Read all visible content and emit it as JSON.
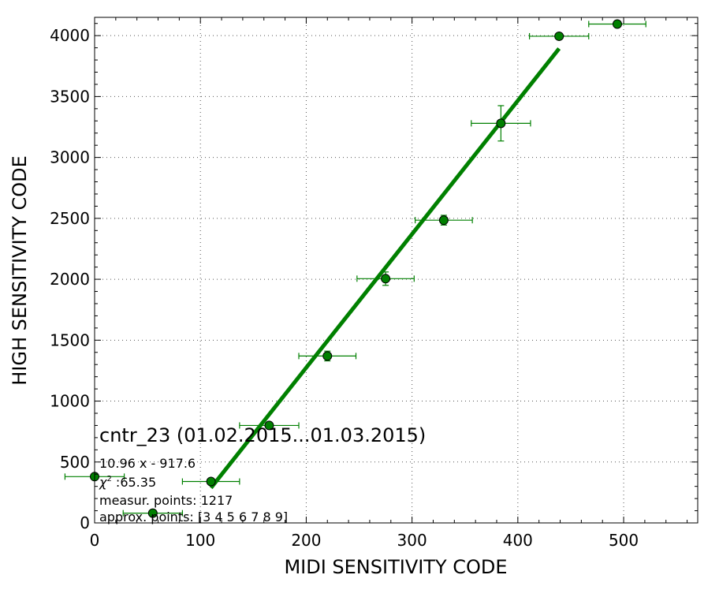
{
  "chart_data": {
    "type": "scatter",
    "xlabel": "MIDI SENSITIVITY CODE",
    "ylabel": "HIGH SENSITIVITY CODE",
    "xlim": [
      0,
      570
    ],
    "ylim": [
      0,
      4150
    ],
    "xticks": [
      0,
      100,
      200,
      300,
      400,
      500
    ],
    "yticks": [
      0,
      500,
      1000,
      1500,
      2000,
      2500,
      3000,
      3500,
      4000
    ],
    "grid": true,
    "color": "#008000",
    "points": [
      {
        "x": 0,
        "y": 380,
        "xerr": 28,
        "yerr": 0
      },
      {
        "x": 55,
        "y": 80,
        "xerr": 28,
        "yerr": 0
      },
      {
        "x": 110,
        "y": 340,
        "xerr": 27,
        "yerr": 0
      },
      {
        "x": 165,
        "y": 800,
        "xerr": 28,
        "yerr": 0
      },
      {
        "x": 220,
        "y": 1370,
        "xerr": 27,
        "yerr": 40
      },
      {
        "x": 275,
        "y": 2005,
        "xerr": 27,
        "yerr": 55
      },
      {
        "x": 330,
        "y": 2485,
        "xerr": 27,
        "yerr": 40
      },
      {
        "x": 384,
        "y": 3280,
        "xerr": 28,
        "yerr": 145
      },
      {
        "x": 439,
        "y": 3995,
        "xerr": 28,
        "yerr": 0
      },
      {
        "x": 494,
        "y": 4095,
        "xerr": 27,
        "yerr": 0
      }
    ],
    "fit_line": {
      "slope": 10.96,
      "intercept": -917.6,
      "x_range": [
        110,
        439
      ]
    },
    "annotation": {
      "title": "cntr_23 (01.02.2015...01.03.2015)",
      "equation": "10.96 x - 917.6",
      "chi_label": "χ",
      "chi_exp": "2",
      "chi_value": " :65.35",
      "measur": "measur. points: 1217",
      "approx": "approx. points: [3 4 5 6 7 8 9]"
    }
  }
}
